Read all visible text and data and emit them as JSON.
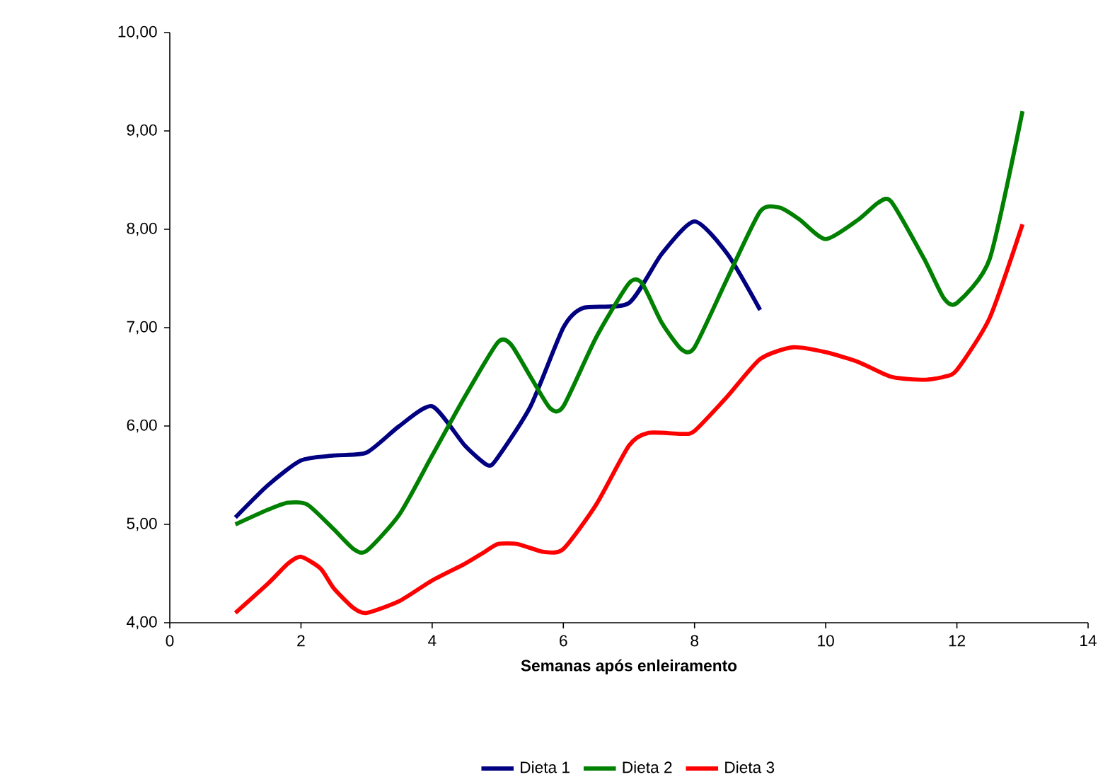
{
  "chart_data": {
    "type": "line",
    "xlabel": "Semanas após enleiramento",
    "xlim": [
      0,
      14
    ],
    "xticks": [
      0,
      2,
      4,
      6,
      8,
      10,
      12,
      14
    ],
    "ylim": [
      4,
      10
    ],
    "yticks": [
      {
        "value": 4,
        "label": "4,00"
      },
      {
        "value": 5,
        "label": "5,00"
      },
      {
        "value": 6,
        "label": "6,00"
      },
      {
        "value": 7,
        "label": "7,00"
      },
      {
        "value": 8,
        "label": "8,00"
      },
      {
        "value": 9,
        "label": "9,00"
      },
      {
        "value": 10,
        "label": "10,00"
      }
    ],
    "grid": false,
    "legend": "bottom",
    "marker": "none",
    "line_style": "solid",
    "series": [
      {
        "name": "Dieta 1",
        "color": "#000080",
        "x": [
          1,
          1.5,
          2,
          2.5,
          3,
          3.5,
          4,
          4.5,
          4.85,
          5,
          5.5,
          6,
          6.3,
          7,
          7.5,
          8,
          8.5,
          9
        ],
        "values": [
          5.07,
          5.4,
          5.65,
          5.7,
          5.73,
          6.0,
          6.2,
          5.8,
          5.6,
          5.68,
          6.2,
          7.0,
          7.2,
          7.25,
          7.75,
          8.08,
          7.75,
          7.18
        ]
      },
      {
        "name": "Dieta 2",
        "color": "#008000",
        "x": [
          1,
          1.5,
          1.8,
          2.1,
          2.5,
          2.8,
          3,
          3.5,
          4,
          4.5,
          5,
          5.2,
          5.5,
          5.8,
          6,
          6.5,
          7,
          7.2,
          7.5,
          7.8,
          8,
          8.5,
          9,
          9.3,
          9.6,
          10,
          10.5,
          10.8,
          11,
          11.5,
          11.8,
          12,
          12.5,
          13
        ],
        "values": [
          5.0,
          5.15,
          5.22,
          5.2,
          4.95,
          4.75,
          4.73,
          5.1,
          5.7,
          6.3,
          6.85,
          6.83,
          6.5,
          6.18,
          6.2,
          6.9,
          7.45,
          7.45,
          7.05,
          6.78,
          6.8,
          7.5,
          8.18,
          8.22,
          8.1,
          7.9,
          8.1,
          8.27,
          8.28,
          7.7,
          7.3,
          7.25,
          7.7,
          9.2
        ]
      },
      {
        "name": "Dieta 3",
        "color": "#ff0000",
        "x": [
          1,
          1.5,
          1.8,
          2,
          2.3,
          2.5,
          2.8,
          3,
          3.5,
          4,
          4.5,
          4.8,
          5,
          5.3,
          5.7,
          6,
          6.5,
          7,
          7.3,
          7.8,
          8,
          8.5,
          9,
          9.5,
          10,
          10.5,
          11,
          11.5,
          11.8,
          12,
          12.5,
          13
        ],
        "values": [
          4.1,
          4.4,
          4.6,
          4.67,
          4.55,
          4.35,
          4.15,
          4.1,
          4.22,
          4.43,
          4.6,
          4.72,
          4.8,
          4.8,
          4.72,
          4.75,
          5.2,
          5.8,
          5.93,
          5.92,
          5.95,
          6.3,
          6.68,
          6.8,
          6.75,
          6.65,
          6.5,
          6.47,
          6.5,
          6.57,
          7.1,
          8.05
        ]
      }
    ]
  }
}
